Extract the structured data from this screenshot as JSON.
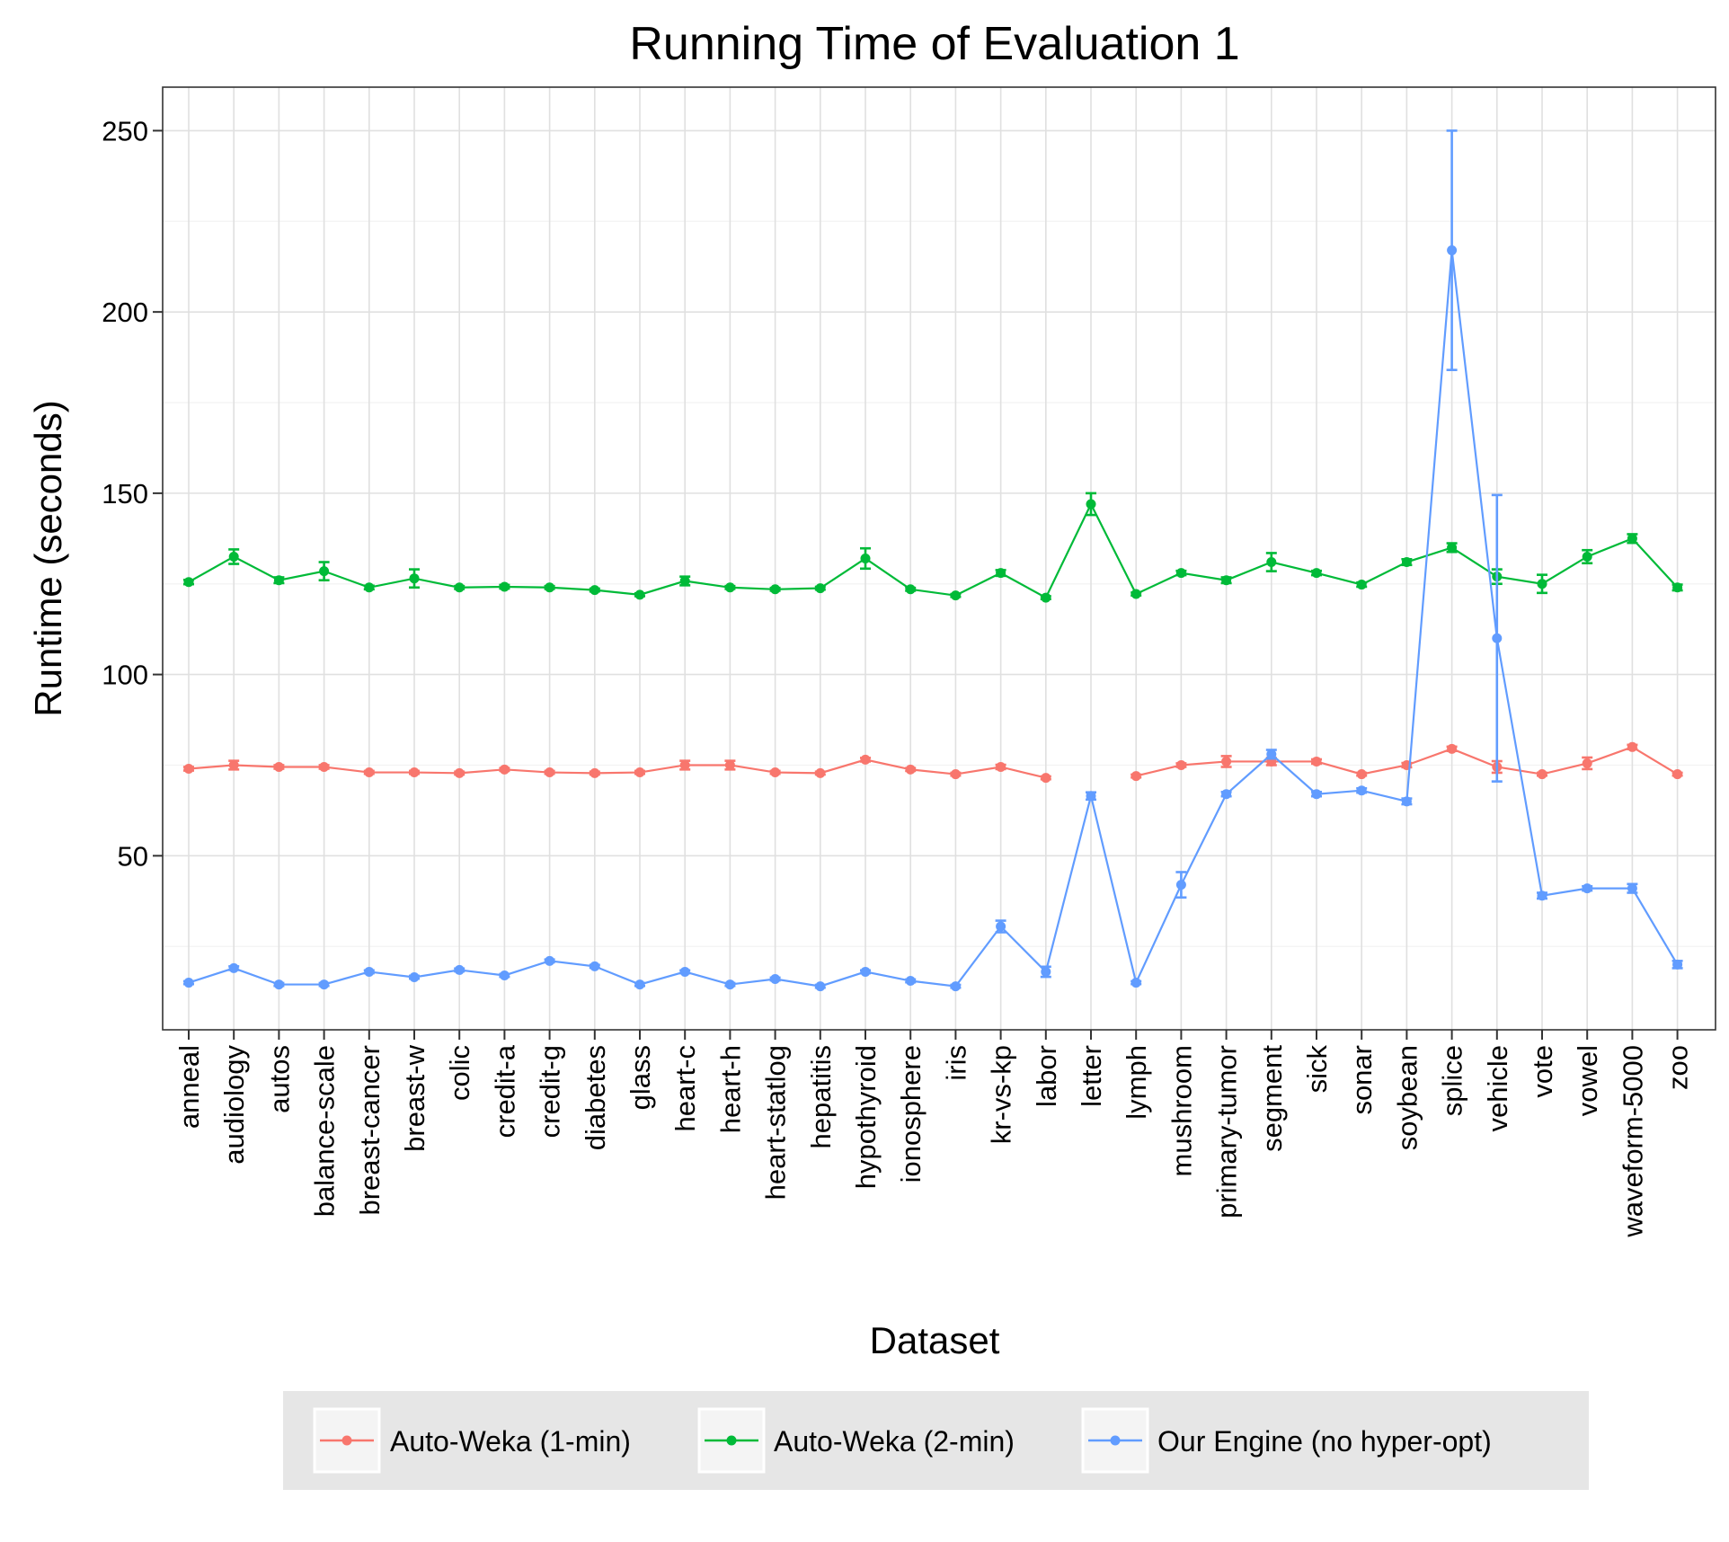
{
  "chart_data": {
    "type": "line",
    "title": "Running Time of Evaluation 1",
    "xlabel": "Dataset",
    "ylabel": "Runtime (seconds)",
    "ylim": [
      2,
      262
    ],
    "yticks": [
      50,
      100,
      150,
      200,
      250
    ],
    "grid": true,
    "legend_position": "bottom",
    "categories": [
      "anneal",
      "audiology",
      "autos",
      "balance-scale",
      "breast-cancer",
      "breast-w",
      "colic",
      "credit-a",
      "credit-g",
      "diabetes",
      "glass",
      "heart-c",
      "heart-h",
      "heart-statlog",
      "hepatitis",
      "hypothyroid",
      "ionosphere",
      "iris",
      "kr-vs-kp",
      "labor",
      "letter",
      "lymph",
      "mushroom",
      "primary-tumor",
      "segment",
      "sick",
      "sonar",
      "soybean",
      "splice",
      "vehicle",
      "vote",
      "vowel",
      "waveform-5000",
      "zoo"
    ],
    "series": [
      {
        "name": "Auto-Weka (1-min)",
        "color": "#f8766d",
        "values": [
          74,
          75,
          74.5,
          74.5,
          73,
          73,
          72.8,
          73.8,
          73,
          72.8,
          73,
          75,
          75,
          73,
          72.8,
          76.5,
          73.8,
          72.5,
          74.5,
          71.5,
          null,
          72,
          75,
          76,
          76,
          76,
          72.5,
          75,
          79.5,
          74.5,
          72.5,
          75.5,
          80,
          72.5
        ],
        "errors": [
          0.5,
          1.2,
          0.5,
          0.5,
          0.4,
          0.4,
          0.4,
          0.4,
          0.4,
          0.4,
          0.4,
          1.2,
          1.2,
          0.4,
          0.4,
          0.5,
          0.4,
          0.4,
          0.6,
          0.4,
          null,
          0.4,
          0.5,
          1.5,
          1.0,
          0.6,
          0.4,
          0.6,
          0.6,
          1.6,
          0.4,
          1.6,
          0.6,
          0.4
        ]
      },
      {
        "name": "Auto-Weka (2-min)",
        "color": "#00ba38",
        "values": [
          125.5,
          132.5,
          126,
          128.5,
          124,
          126.5,
          124,
          124.2,
          124,
          123.3,
          122,
          125.8,
          124,
          123.5,
          123.8,
          132,
          123.5,
          121.8,
          128,
          121.2,
          147,
          122.2,
          128,
          126,
          131,
          128,
          124.8,
          131,
          135,
          127,
          125,
          132.5,
          137.5,
          124
        ],
        "errors": [
          0.6,
          2.0,
          0.8,
          2.5,
          0.5,
          2.5,
          0.4,
          0.5,
          0.4,
          0.4,
          0.4,
          1.2,
          0.4,
          0.4,
          0.4,
          2.8,
          0.4,
          0.4,
          0.8,
          0.4,
          3.0,
          0.4,
          0.6,
          0.8,
          2.5,
          0.6,
          0.6,
          0.8,
          1.2,
          2.0,
          2.5,
          1.8,
          1.2,
          0.8
        ]
      },
      {
        "name": "Our Engine (no hyper-opt)",
        "color": "#619cff",
        "values": [
          15,
          19,
          14.5,
          14.5,
          18,
          16.5,
          18.5,
          17,
          21,
          19.5,
          14.5,
          18,
          14.5,
          16,
          14,
          18,
          15.5,
          14,
          30.5,
          18,
          66.5,
          15,
          42,
          67,
          78,
          67,
          68,
          65,
          217,
          110,
          39,
          41,
          41,
          20
        ],
        "errors": [
          0.4,
          0.5,
          0.4,
          0.4,
          0.4,
          0.4,
          0.4,
          0.4,
          0.4,
          0.4,
          0.4,
          0.4,
          0.4,
          0.4,
          0.4,
          0.4,
          0.4,
          0.4,
          1.6,
          1.4,
          1.0,
          0.4,
          3.5,
          0.6,
          1.2,
          0.6,
          0.6,
          0.8,
          33,
          39.5,
          0.8,
          0.6,
          1.2,
          1.0
        ]
      }
    ]
  }
}
